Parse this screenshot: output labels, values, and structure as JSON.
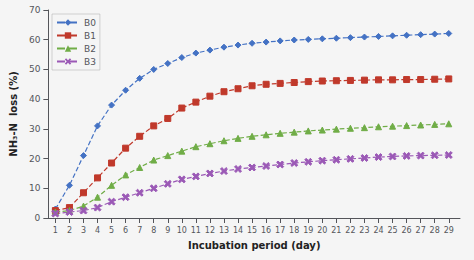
{
  "chart_data": {
    "type": "line",
    "xlabel": "Incubation period (day)",
    "ylabel": "NH₃-N  loss (%)",
    "x": [
      1,
      2,
      3,
      4,
      5,
      6,
      7,
      8,
      9,
      10,
      11,
      12,
      13,
      14,
      15,
      16,
      17,
      18,
      19,
      20,
      21,
      22,
      23,
      24,
      25,
      26,
      27,
      28,
      29
    ],
    "series": [
      {
        "name": "B0",
        "color": "#4472c4",
        "marker": "diamond",
        "line_style": "dashed",
        "values": [
          3.0,
          11.0,
          21.0,
          31.0,
          38.0,
          43.0,
          47.0,
          50.0,
          52.0,
          54.0,
          55.5,
          56.5,
          57.5,
          58.2,
          58.8,
          59.2,
          59.6,
          59.9,
          60.1,
          60.3,
          60.5,
          60.7,
          60.9,
          61.1,
          61.3,
          61.5,
          61.7,
          61.9,
          62.1
        ]
      },
      {
        "name": "B1",
        "color": "#c0392b",
        "marker": "square",
        "line_style": "dashed",
        "values": [
          2.5,
          3.5,
          8.5,
          13.5,
          18.5,
          23.5,
          27.5,
          31.0,
          33.5,
          37.0,
          39.0,
          41.0,
          42.5,
          43.5,
          44.5,
          45.0,
          45.3,
          45.6,
          45.9,
          46.1,
          46.2,
          46.3,
          46.4,
          46.5,
          46.5,
          46.6,
          46.6,
          46.7,
          46.8
        ]
      },
      {
        "name": "B2",
        "color": "#70ad47",
        "marker": "triangle",
        "line_style": "dashed",
        "values": [
          2.0,
          2.5,
          4.0,
          7.0,
          11.0,
          14.5,
          17.0,
          19.5,
          21.0,
          22.5,
          24.0,
          25.0,
          26.0,
          26.8,
          27.5,
          28.0,
          28.5,
          28.9,
          29.3,
          29.6,
          29.9,
          30.2,
          30.4,
          30.7,
          30.9,
          31.1,
          31.3,
          31.5,
          31.7
        ]
      },
      {
        "name": "B3",
        "color": "#9b59b6",
        "marker": "x",
        "line_style": "dashed",
        "values": [
          1.5,
          2.0,
          2.5,
          3.5,
          5.5,
          7.0,
          8.5,
          10.0,
          11.5,
          13.0,
          14.0,
          15.0,
          15.8,
          16.5,
          17.0,
          17.5,
          18.0,
          18.5,
          18.9,
          19.3,
          19.6,
          19.9,
          20.2,
          20.5,
          20.7,
          20.9,
          21.0,
          21.1,
          21.2
        ]
      }
    ],
    "xlim": [
      0.5,
      29.8
    ],
    "xticks": [
      1,
      2,
      3,
      4,
      5,
      6,
      7,
      8,
      9,
      10,
      11,
      12,
      13,
      14,
      15,
      16,
      17,
      18,
      19,
      20,
      21,
      22,
      23,
      24,
      25,
      26,
      27,
      28,
      29
    ],
    "ylim": [
      0,
      70
    ],
    "yticks": [
      0,
      10,
      20,
      30,
      40,
      50,
      60,
      70
    ],
    "grid": false,
    "legend": "upper left"
  }
}
